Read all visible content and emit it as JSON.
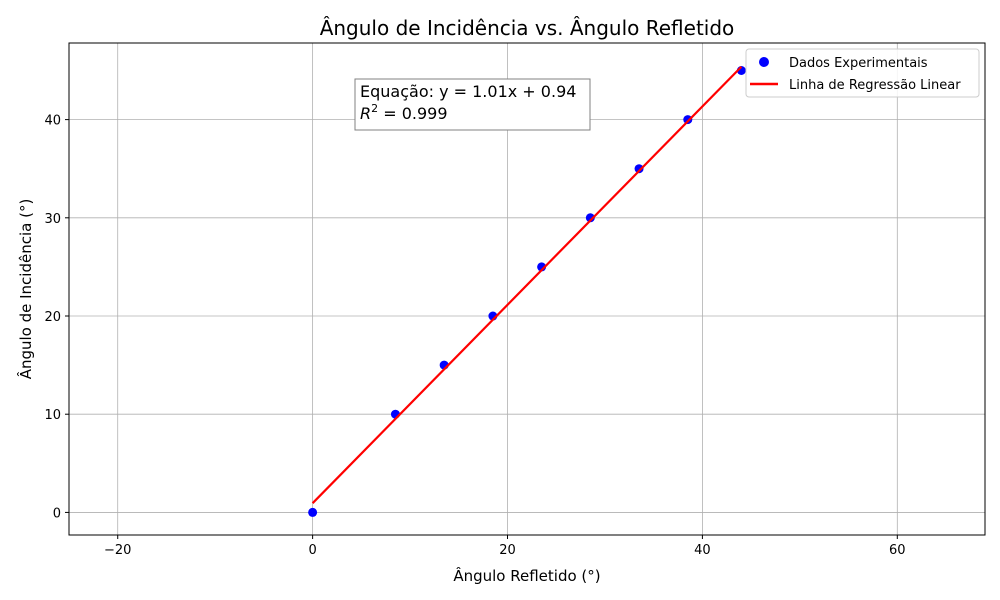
{
  "chart_data": {
    "type": "scatter",
    "title": "Ângulo de Incidência vs. Ângulo Refletido",
    "xlabel": "Ângulo Refletido (°)",
    "ylabel": "Ângulo de Incidência (°)",
    "xlim": [
      -25,
      69
    ],
    "ylim": [
      -2.3,
      47.8
    ],
    "xticks": [
      -20,
      0,
      20,
      40,
      60
    ],
    "yticks": [
      0,
      10,
      20,
      30,
      40
    ],
    "grid": true,
    "legend_position": "top-right",
    "series": [
      {
        "name": "Dados Experimentais",
        "kind": "scatter",
        "color": "#0000ff",
        "points": [
          {
            "x": 0,
            "y": 0
          },
          {
            "x": 8.5,
            "y": 10
          },
          {
            "x": 13.5,
            "y": 15
          },
          {
            "x": 18.5,
            "y": 20
          },
          {
            "x": 23.5,
            "y": 25
          },
          {
            "x": 28.5,
            "y": 30
          },
          {
            "x": 33.5,
            "y": 35
          },
          {
            "x": 38.5,
            "y": 40
          },
          {
            "x": 44,
            "y": 45
          }
        ]
      },
      {
        "name": "Linha de Regressão Linear",
        "kind": "line",
        "color": "#ff0000",
        "points": [
          {
            "x": 0,
            "y": 0.94
          },
          {
            "x": 44,
            "y": 45.38
          }
        ]
      }
    ],
    "annotation": {
      "equation": "Equação: y = 1.01x + 0.94",
      "r2_label": "R",
      "r2_sup": "2",
      "r2_value": " = 0.999"
    }
  }
}
